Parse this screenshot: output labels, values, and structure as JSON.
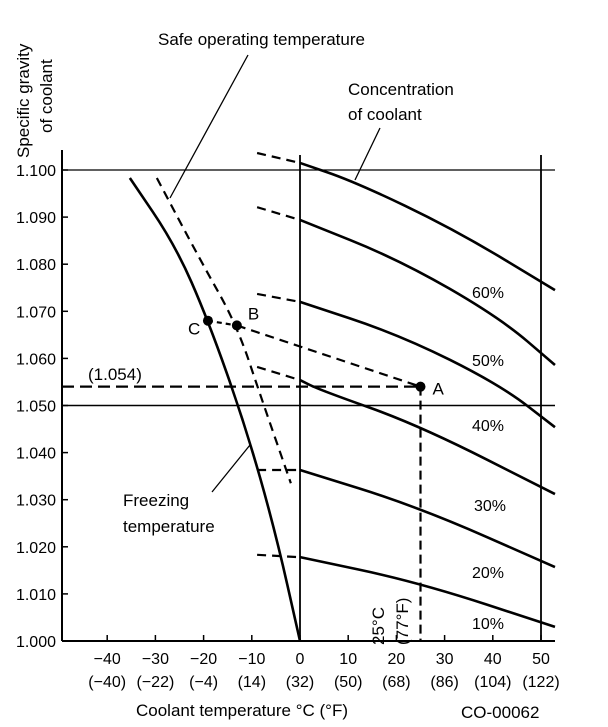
{
  "chart_data": {
    "type": "line",
    "title": "",
    "xlabel": "Coolant temperature °C (°F)",
    "ylabel_lines": [
      "Specific gravity",
      "of coolant"
    ],
    "xlim": [
      -49,
      53
    ],
    "ylim": [
      1.0,
      1.104
    ],
    "x_ticks": [
      {
        "c": "−40",
        "f": "(−40)",
        "v": -40
      },
      {
        "c": "−30",
        "f": "(−22)",
        "v": -30
      },
      {
        "c": "−20",
        "f": "(−4)",
        "v": -20
      },
      {
        "c": "−10",
        "f": "(14)",
        "v": -10
      },
      {
        "c": "0",
        "f": "(32)",
        "v": 0
      },
      {
        "c": "10",
        "f": "(50)",
        "v": 10
      },
      {
        "c": "20",
        "f": "(68)",
        "v": 20
      },
      {
        "c": "30",
        "f": "(86)",
        "v": 30
      },
      {
        "c": "40",
        "f": "(104)",
        "v": 40
      },
      {
        "c": "50",
        "f": "(122)",
        "v": 50
      }
    ],
    "y_ticks": [
      "1.000",
      "1.010",
      "1.020",
      "1.030",
      "1.040",
      "1.050",
      "1.060",
      "1.070",
      "1.080",
      "1.090",
      "1.100"
    ],
    "reference_lines": {
      "horizontal": [
        1.1,
        1.05
      ],
      "vertical": [
        0,
        50
      ]
    },
    "concentration_curves": [
      {
        "dashed": [
          [
            -8.9,
            1.1036
          ],
          [
            0,
            1.1015
          ]
        ],
        "solid": [
          [
            0,
            1.1015
          ],
          [
            11.4,
            1.0975
          ],
          [
            32.2,
            1.0873
          ],
          [
            52.9,
            1.0745
          ]
        ]
      },
      {
        "dashed": [
          [
            -8.9,
            1.0921
          ],
          [
            0,
            1.0894
          ]
        ],
        "solid": [
          [
            0,
            1.0894
          ],
          [
            20.7,
            1.0809
          ],
          [
            41.5,
            1.0686
          ],
          [
            52.9,
            1.0586
          ]
        ]
      },
      {
        "dashed": [
          [
            -8.9,
            1.0737
          ],
          [
            0,
            1.072
          ]
        ],
        "solid": [
          [
            0,
            1.072
          ],
          [
            20.7,
            1.065
          ],
          [
            41.5,
            1.0544
          ],
          [
            52.9,
            1.0454
          ]
        ]
      },
      {
        "dashed": [
          [
            -8.9,
            1.0582
          ],
          [
            0,
            1.0554
          ]
        ],
        "solid": [
          [
            0,
            1.0554
          ],
          [
            4.1,
            1.0533
          ],
          [
            24.5,
            1.0459
          ],
          [
            52.9,
            1.0312
          ]
        ]
      },
      {
        "dashed": [
          [
            -8.9,
            1.0363
          ],
          [
            0,
            1.0363
          ]
        ],
        "solid": [
          [
            0,
            1.0363
          ],
          [
            24.5,
            1.0285
          ],
          [
            52.9,
            1.0157
          ]
        ]
      },
      {
        "dashed": [
          [
            -8.9,
            1.0183
          ],
          [
            0,
            1.0178
          ]
        ],
        "solid": [
          [
            0,
            1.0178
          ],
          [
            24.5,
            1.0125
          ],
          [
            52.9,
            1.003
          ]
        ]
      }
    ],
    "concentration_labels": [
      "60%",
      "50%",
      "40%",
      "30%",
      "20%",
      "10%"
    ],
    "freezing_curve": [
      [
        -35.3,
        1.0983
      ],
      [
        -25.9,
        1.0841
      ],
      [
        -19.1,
        1.0682
      ],
      [
        -11.4,
        1.0459
      ],
      [
        -5.2,
        1.0236
      ],
      [
        0,
        1.0
      ]
    ],
    "safe_curve": [
      [
        -29.7,
        1.0983
      ],
      [
        -20.7,
        1.0809
      ],
      [
        -13.1,
        1.0671
      ],
      [
        -7.9,
        1.0512
      ],
      [
        -1.9,
        1.0335
      ]
    ],
    "points": [
      {
        "label": "A",
        "x": 25,
        "y": 1.054
      },
      {
        "label": "B",
        "x": -13.1,
        "y": 1.067
      },
      {
        "label": "C",
        "x": -19.1,
        "y": 1.068
      }
    ],
    "reading_value_label": "(1.054)",
    "reading_temp_label": [
      "25°C",
      "(77°F)"
    ],
    "annotations": {
      "safe": "Safe operating temperature",
      "concentration": [
        "Concentration",
        "of coolant"
      ],
      "freezing": [
        "Freezing",
        "temperature"
      ]
    },
    "figure_code": "CO-00062"
  }
}
